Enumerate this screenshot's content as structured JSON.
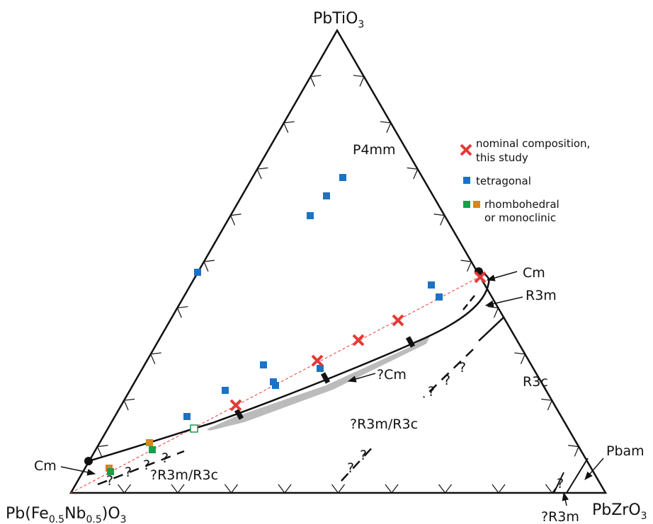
{
  "diagram": {
    "vertices": {
      "top": [
        "PbTiO",
        "3"
      ],
      "left": [
        "Pb(Fe",
        "0.5",
        "Nb",
        "0.5",
        ")O",
        "3"
      ],
      "right": [
        "PbZrO",
        "3"
      ]
    },
    "regions": {
      "p4mm": "P4mm",
      "cm_right": "Cm",
      "r3m": "R3m",
      "r3c": "R3c",
      "q_cm": "?Cm",
      "q_r3m_r3c_mid": "?R3m/R3c",
      "q_r3m_r3c_low": "?R3m/R3c",
      "cm_left": "Cm",
      "pbam": "Pbam",
      "q_r3m": "?R3m"
    },
    "question_mark": "?",
    "legend": {
      "nominal": [
        "nominal composition,",
        "this study"
      ],
      "tetragonal": "tetragonal",
      "rhombohedral": [
        "rhombohedral",
        "or monoclinic"
      ]
    }
  }
}
